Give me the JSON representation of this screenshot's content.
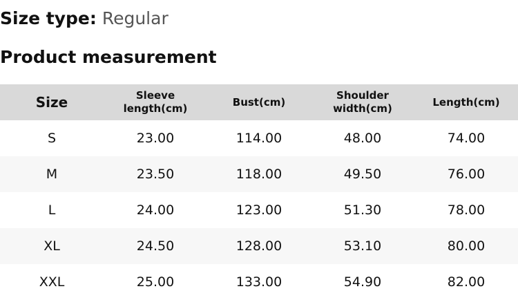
{
  "size_type": {
    "label": "Size type:",
    "value": "Regular"
  },
  "section_title": "Product measurement",
  "table": {
    "headers": [
      "Size",
      "Sleeve length(cm)",
      "Bust(cm)",
      "Shoulder width(cm)",
      "Length(cm)"
    ],
    "rows": [
      [
        "S",
        "23.00",
        "114.00",
        "48.00",
        "74.00"
      ],
      [
        "M",
        "23.50",
        "118.00",
        "49.50",
        "76.00"
      ],
      [
        "L",
        "24.00",
        "123.00",
        "51.30",
        "78.00"
      ],
      [
        "XL",
        "24.50",
        "128.00",
        "53.10",
        "80.00"
      ],
      [
        "XXL",
        "25.00",
        "133.00",
        "54.90",
        "82.00"
      ]
    ]
  },
  "colors": {
    "header_bg": "#d9d9d9",
    "alt_row_bg": "#f7f7f7"
  }
}
